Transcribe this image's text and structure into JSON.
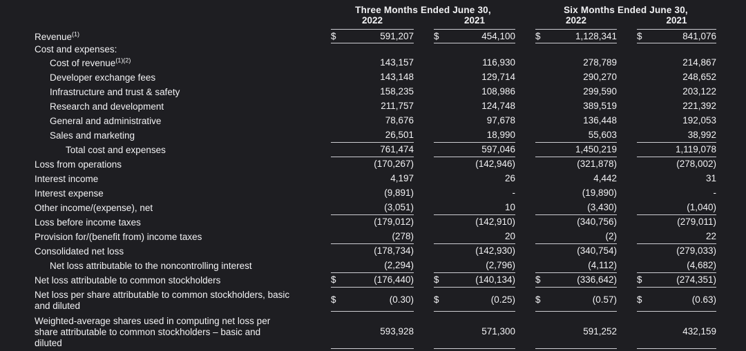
{
  "meta": {
    "background_color": "#1e1e22",
    "text_color": "#f2f2f4",
    "rule_color": "#cfcfd4"
  },
  "header": {
    "groups": [
      {
        "title": "Three Months Ended June 30,",
        "years": [
          "2022",
          "2021"
        ]
      },
      {
        "title": "Six Months Ended June 30,",
        "years": [
          "2022",
          "2021"
        ]
      }
    ]
  },
  "rows": [
    {
      "label": "Revenue",
      "sup": "(1)",
      "indent": 0,
      "dollar": true,
      "underline": true,
      "compact": true,
      "values": [
        "591,207",
        "454,100",
        "1,128,341",
        "841,076"
      ]
    },
    {
      "label": "Cost and expenses:",
      "indent": 0,
      "compact": true,
      "values": null
    },
    {
      "label": "Cost of revenue",
      "sup": "(1)(2)",
      "indent": 1,
      "values": [
        "143,157",
        "116,930",
        "278,789",
        "214,867"
      ]
    },
    {
      "label": "Developer exchange fees",
      "indent": 1,
      "values": [
        "143,148",
        "129,714",
        "290,270",
        "248,652"
      ]
    },
    {
      "label": "Infrastructure and trust & safety",
      "indent": 1,
      "values": [
        "158,235",
        "108,986",
        "299,590",
        "203,122"
      ]
    },
    {
      "label": "Research and development",
      "indent": 1,
      "values": [
        "211,757",
        "124,748",
        "389,519",
        "221,392"
      ]
    },
    {
      "label": "General and administrative",
      "indent": 1,
      "values": [
        "78,676",
        "97,678",
        "136,448",
        "192,053"
      ]
    },
    {
      "label": "Sales and marketing",
      "indent": 1,
      "underline": true,
      "values": [
        "26,501",
        "18,990",
        "55,603",
        "38,992"
      ]
    },
    {
      "label": "Total cost and expenses",
      "indent": 2,
      "underline": true,
      "values": [
        "761,474",
        "597,046",
        "1,450,219",
        "1,119,078"
      ]
    },
    {
      "label": "Loss from operations",
      "indent": 0,
      "values": [
        "(170,267)",
        "(142,946)",
        "(321,878)",
        "(278,002)"
      ]
    },
    {
      "label": "Interest income",
      "indent": 0,
      "values": [
        "4,197",
        "26",
        "4,442",
        "31"
      ]
    },
    {
      "label": "Interest expense",
      "indent": 0,
      "values": [
        "(9,891)",
        "-",
        "(19,890)",
        "-"
      ]
    },
    {
      "label": "Other income/(expense), net",
      "indent": 0,
      "underline": true,
      "values": [
        "(3,051)",
        "10",
        "(3,430)",
        "(1,040)"
      ]
    },
    {
      "label": "Loss before income taxes",
      "indent": 0,
      "values": [
        "(179,012)",
        "(142,910)",
        "(340,756)",
        "(279,011)"
      ]
    },
    {
      "label": "Provision for/(benefit from) income taxes",
      "indent": 0,
      "underline": true,
      "values": [
        "(278)",
        "20",
        "(2)",
        "22"
      ]
    },
    {
      "label": "Consolidated net loss",
      "indent": 0,
      "values": [
        "(178,734)",
        "(142,930)",
        "(340,754)",
        "(279,033)"
      ]
    },
    {
      "label": "Net loss attributable to the noncontrolling interest",
      "indent": 1,
      "underline": true,
      "values": [
        "(2,294)",
        "(2,796)",
        "(4,112)",
        "(4,682)"
      ]
    },
    {
      "label": "Net loss attributable to common stockholders",
      "indent": 0,
      "dollar": true,
      "underline": true,
      "values": [
        "(176,440)",
        "(140,134)",
        "(336,642)",
        "(274,351)"
      ]
    },
    {
      "label": "Net loss per share attributable to common stockholders, basic and diluted",
      "indent": 0,
      "dollar": true,
      "underline": true,
      "multiline": true,
      "values": [
        "(0.30)",
        "(0.25)",
        "(0.57)",
        "(0.63)"
      ]
    },
    {
      "label": "Weighted-average shares used in computing net loss per share attributable to common stockholders – basic and diluted",
      "indent": 0,
      "underline": true,
      "multiline": true,
      "values": [
        "593,928",
        "571,300",
        "591,252",
        "432,159"
      ]
    }
  ]
}
